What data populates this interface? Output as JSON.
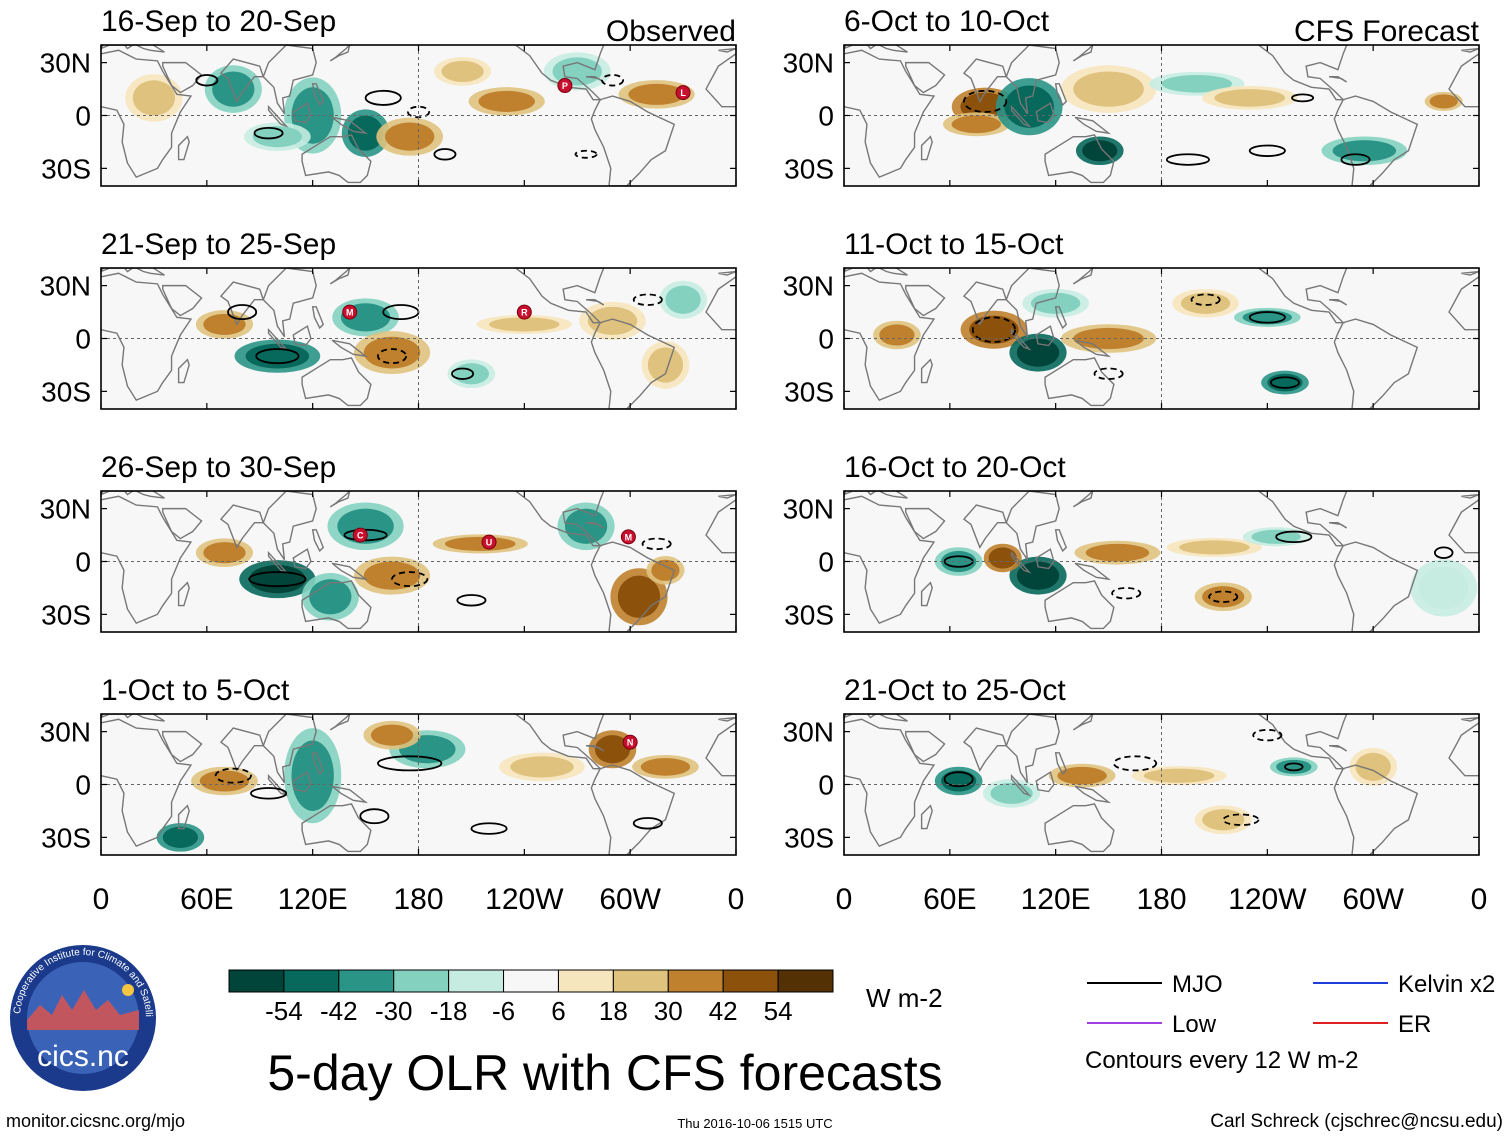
{
  "title": "5-day OLR with CFS forecasts",
  "url": "monitor.cicsnc.org/mjo",
  "timestamp": "Thu 2016-10-06 1515 UTC",
  "author": "Carl Schreck (cjschrec@ncsu.edu)",
  "logo": {
    "text": "cics.nc",
    "ring_text": "Cooperative Institute for Climate and Satellites"
  },
  "chart_data": {
    "type": "heatmap",
    "variable": "Outgoing Longwave Radiation anomaly",
    "units": "W m-2",
    "x_ticks": [
      "0",
      "60E",
      "120E",
      "180",
      "120W",
      "60W",
      "0"
    ],
    "y_ticks": [
      "30N",
      "0",
      "30S"
    ],
    "xlim_deg": [
      0,
      360
    ],
    "ylim_deg": [
      -40,
      40
    ],
    "colorbar": {
      "labels": [
        "-54",
        "-42",
        "-30",
        "-18",
        "-6",
        "6",
        "18",
        "30",
        "42",
        "54"
      ],
      "colors": [
        "#01443a",
        "#07685c",
        "#2a9486",
        "#84d1c0",
        "#c6ece2",
        "#f7f7f7",
        "#f6e6bd",
        "#dfc27d",
        "#bf812d",
        "#8c510a",
        "#543005"
      ]
    },
    "legend": {
      "items": [
        {
          "label": "MJO",
          "color": "#000000"
        },
        {
          "label": "Kelvin x2",
          "color": "#1e3cdc"
        },
        {
          "label": "Low",
          "color": "#a040e0"
        },
        {
          "label": "ER",
          "color": "#e02020"
        }
      ],
      "note": "Contours every 12 W m-2"
    },
    "panels": [
      {
        "period": "16-Sep to 20-Sep",
        "kind": "Observed",
        "column": "left",
        "tag": "Observed",
        "markers": [
          {
            "label": "P",
            "lon": 263,
            "lat": 17
          },
          {
            "label": "L",
            "lon": 330,
            "lat": 13
          }
        ]
      },
      {
        "period": "21-Sep to 25-Sep",
        "kind": "Observed",
        "column": "left",
        "tag": "",
        "markers": [
          {
            "label": "M",
            "lon": 141,
            "lat": 15
          },
          {
            "label": "R",
            "lon": 240,
            "lat": 15
          }
        ]
      },
      {
        "period": "26-Sep to 30-Sep",
        "kind": "Observed",
        "column": "left",
        "tag": "",
        "markers": [
          {
            "label": "C",
            "lon": 147,
            "lat": 15
          },
          {
            "label": "U",
            "lon": 220,
            "lat": 11
          },
          {
            "label": "M",
            "lon": 299,
            "lat": 14
          }
        ]
      },
      {
        "period": "1-Oct to 5-Oct",
        "kind": "Observed",
        "column": "left",
        "tag": "",
        "markers": [
          {
            "label": "N",
            "lon": 300,
            "lat": 24
          }
        ]
      },
      {
        "period": "6-Oct to 10-Oct",
        "kind": "CFS Forecast",
        "column": "right",
        "tag": "CFS Forecast",
        "markers": []
      },
      {
        "period": "11-Oct to 15-Oct",
        "kind": "CFS Forecast",
        "column": "right",
        "tag": "",
        "markers": []
      },
      {
        "period": "16-Oct to 20-Oct",
        "kind": "CFS Forecast",
        "column": "right",
        "tag": "",
        "markers": []
      },
      {
        "period": "21-Oct to 25-Oct",
        "kind": "CFS Forecast",
        "column": "right",
        "tag": "",
        "markers": []
      }
    ],
    "anomaly_features": [
      {
        "panel": 0,
        "lon": 120,
        "lat": 0,
        "w": 12,
        "h": 16,
        "v": -30
      },
      {
        "panel": 0,
        "lon": 150,
        "lat": -10,
        "w": 10,
        "h": 10,
        "v": -42
      },
      {
        "panel": 0,
        "lon": 75,
        "lat": 15,
        "w": 12,
        "h": 10,
        "v": -30
      },
      {
        "panel": 0,
        "lon": 100,
        "lat": -12,
        "w": 14,
        "h": 6,
        "v": -18
      },
      {
        "panel": 0,
        "lon": 175,
        "lat": -12,
        "w": 14,
        "h": 8,
        "v": 30
      },
      {
        "panel": 0,
        "lon": 230,
        "lat": 8,
        "w": 16,
        "h": 6,
        "v": 30
      },
      {
        "panel": 0,
        "lon": 315,
        "lat": 12,
        "w": 16,
        "h": 6,
        "v": 30
      },
      {
        "panel": 0,
        "lon": 270,
        "lat": 25,
        "w": 14,
        "h": 8,
        "v": -18
      },
      {
        "panel": 0,
        "lon": 30,
        "lat": 10,
        "w": 12,
        "h": 10,
        "v": 18
      },
      {
        "panel": 0,
        "lon": 205,
        "lat": 25,
        "w": 12,
        "h": 6,
        "v": 18
      },
      {
        "panel": 1,
        "lon": 100,
        "lat": -10,
        "w": 18,
        "h": 7,
        "v": -42
      },
      {
        "panel": 1,
        "lon": 150,
        "lat": 12,
        "w": 14,
        "h": 8,
        "v": -30
      },
      {
        "panel": 1,
        "lon": 70,
        "lat": 8,
        "w": 12,
        "h": 6,
        "v": 30
      },
      {
        "panel": 1,
        "lon": 165,
        "lat": -8,
        "w": 16,
        "h": 9,
        "v": 30
      },
      {
        "panel": 1,
        "lon": 240,
        "lat": 8,
        "w": 20,
        "h": 4,
        "v": 18
      },
      {
        "panel": 1,
        "lon": 290,
        "lat": 10,
        "w": 14,
        "h": 8,
        "v": 18
      },
      {
        "panel": 1,
        "lon": 320,
        "lat": -15,
        "w": 10,
        "h": 10,
        "v": 18
      },
      {
        "panel": 1,
        "lon": 210,
        "lat": -20,
        "w": 10,
        "h": 6,
        "v": -18
      },
      {
        "panel": 1,
        "lon": 330,
        "lat": 22,
        "w": 10,
        "h": 8,
        "v": -18
      },
      {
        "panel": 2,
        "lon": 100,
        "lat": -10,
        "w": 16,
        "h": 8,
        "v": -54
      },
      {
        "panel": 2,
        "lon": 130,
        "lat": -20,
        "w": 12,
        "h": 10,
        "v": -30
      },
      {
        "panel": 2,
        "lon": 150,
        "lat": 20,
        "w": 16,
        "h": 10,
        "v": -30
      },
      {
        "panel": 2,
        "lon": 165,
        "lat": -8,
        "w": 16,
        "h": 8,
        "v": 30
      },
      {
        "panel": 2,
        "lon": 70,
        "lat": 5,
        "w": 12,
        "h": 6,
        "v": 30
      },
      {
        "panel": 2,
        "lon": 215,
        "lat": 10,
        "w": 20,
        "h": 4,
        "v": 30
      },
      {
        "panel": 2,
        "lon": 305,
        "lat": -20,
        "w": 12,
        "h": 12,
        "v": 42
      },
      {
        "panel": 2,
        "lon": 275,
        "lat": 20,
        "w": 12,
        "h": 10,
        "v": -30
      },
      {
        "panel": 2,
        "lon": 320,
        "lat": -5,
        "w": 8,
        "h": 6,
        "v": 30
      },
      {
        "panel": 3,
        "lon": 120,
        "lat": 5,
        "w": 12,
        "h": 20,
        "v": -30
      },
      {
        "panel": 3,
        "lon": 70,
        "lat": 2,
        "w": 14,
        "h": 6,
        "v": 30
      },
      {
        "panel": 3,
        "lon": 185,
        "lat": 20,
        "w": 16,
        "h": 8,
        "v": -30
      },
      {
        "panel": 3,
        "lon": 250,
        "lat": 10,
        "w": 18,
        "h": 6,
        "v": 18
      },
      {
        "panel": 3,
        "lon": 290,
        "lat": 20,
        "w": 10,
        "h": 8,
        "v": 42
      },
      {
        "panel": 3,
        "lon": 320,
        "lat": 10,
        "w": 14,
        "h": 5,
        "v": 30
      },
      {
        "panel": 3,
        "lon": 45,
        "lat": -30,
        "w": 10,
        "h": 6,
        "v": -42
      },
      {
        "panel": 3,
        "lon": 165,
        "lat": 28,
        "w": 12,
        "h": 6,
        "v": 30
      },
      {
        "panel": 4,
        "lon": 80,
        "lat": 5,
        "w": 14,
        "h": 8,
        "v": 42
      },
      {
        "panel": 4,
        "lon": 75,
        "lat": -5,
        "w": 14,
        "h": 5,
        "v": 30
      },
      {
        "panel": 4,
        "lon": 105,
        "lat": 5,
        "w": 14,
        "h": 12,
        "v": -42
      },
      {
        "panel": 4,
        "lon": 145,
        "lat": -20,
        "w": 10,
        "h": 6,
        "v": -54
      },
      {
        "panel": 4,
        "lon": 150,
        "lat": 15,
        "w": 20,
        "h": 10,
        "v": 18
      },
      {
        "panel": 4,
        "lon": 200,
        "lat": 18,
        "w": 20,
        "h": 5,
        "v": -18
      },
      {
        "panel": 4,
        "lon": 230,
        "lat": 10,
        "w": 20,
        "h": 5,
        "v": 18
      },
      {
        "panel": 4,
        "lon": 295,
        "lat": -20,
        "w": 18,
        "h": 6,
        "v": -30
      },
      {
        "panel": 4,
        "lon": 340,
        "lat": 8,
        "w": 8,
        "h": 4,
        "v": 30
      },
      {
        "panel": 5,
        "lon": 85,
        "lat": 5,
        "w": 14,
        "h": 8,
        "v": 42
      },
      {
        "panel": 5,
        "lon": 30,
        "lat": 2,
        "w": 10,
        "h": 6,
        "v": 30
      },
      {
        "panel": 5,
        "lon": 110,
        "lat": -8,
        "w": 12,
        "h": 8,
        "v": -54
      },
      {
        "panel": 5,
        "lon": 150,
        "lat": 0,
        "w": 20,
        "h": 6,
        "v": 30
      },
      {
        "panel": 5,
        "lon": 240,
        "lat": 12,
        "w": 14,
        "h": 4,
        "v": -30
      },
      {
        "panel": 5,
        "lon": 250,
        "lat": -25,
        "w": 10,
        "h": 5,
        "v": -42
      },
      {
        "panel": 5,
        "lon": 205,
        "lat": 20,
        "w": 14,
        "h": 6,
        "v": 18
      },
      {
        "panel": 5,
        "lon": 120,
        "lat": 20,
        "w": 14,
        "h": 6,
        "v": -18
      },
      {
        "panel": 6,
        "lon": 110,
        "lat": -8,
        "w": 12,
        "h": 8,
        "v": -54
      },
      {
        "panel": 6,
        "lon": 65,
        "lat": 0,
        "w": 10,
        "h": 6,
        "v": -30
      },
      {
        "panel": 6,
        "lon": 90,
        "lat": 2,
        "w": 8,
        "h": 6,
        "v": 42
      },
      {
        "panel": 6,
        "lon": 155,
        "lat": 5,
        "w": 18,
        "h": 5,
        "v": 30
      },
      {
        "panel": 6,
        "lon": 210,
        "lat": 8,
        "w": 20,
        "h": 4,
        "v": 18
      },
      {
        "panel": 6,
        "lon": 215,
        "lat": -20,
        "w": 12,
        "h": 6,
        "v": 30
      },
      {
        "panel": 6,
        "lon": 245,
        "lat": 14,
        "w": 14,
        "h": 4,
        "v": -18
      },
      {
        "panel": 6,
        "lon": 340,
        "lat": -15,
        "w": 14,
        "h": 12,
        "v": -6
      },
      {
        "panel": 7,
        "lon": 65,
        "lat": 2,
        "w": 10,
        "h": 6,
        "v": -42
      },
      {
        "panel": 7,
        "lon": 95,
        "lat": -5,
        "w": 12,
        "h": 6,
        "v": -18
      },
      {
        "panel": 7,
        "lon": 135,
        "lat": 5,
        "w": 14,
        "h": 5,
        "v": 30
      },
      {
        "panel": 7,
        "lon": 190,
        "lat": 5,
        "w": 20,
        "h": 4,
        "v": 18
      },
      {
        "panel": 7,
        "lon": 255,
        "lat": 10,
        "w": 10,
        "h": 4,
        "v": -30
      },
      {
        "panel": 7,
        "lon": 215,
        "lat": -20,
        "w": 12,
        "h": 6,
        "v": 18
      },
      {
        "panel": 7,
        "lon": 300,
        "lat": 10,
        "w": 10,
        "h": 8,
        "v": 18
      }
    ],
    "mjo_contours": [
      {
        "panel": 0,
        "lon": 95,
        "lat": -10,
        "rx": 8,
        "ry": 3,
        "dash": false
      },
      {
        "panel": 0,
        "lon": 160,
        "lat": 10,
        "rx": 10,
        "ry": 4,
        "dash": false
      },
      {
        "panel": 0,
        "lon": 195,
        "lat": -22,
        "rx": 6,
        "ry": 3,
        "dash": false
      },
      {
        "panel": 0,
        "lon": 60,
        "lat": 20,
        "rx": 6,
        "ry": 3,
        "dash": false
      },
      {
        "panel": 0,
        "lon": 180,
        "lat": 2,
        "rx": 6,
        "ry": 3,
        "dash": true
      },
      {
        "panel": 0,
        "lon": 290,
        "lat": 20,
        "rx": 6,
        "ry": 3,
        "dash": true
      },
      {
        "panel": 0,
        "lon": 275,
        "lat": -22,
        "rx": 6,
        "ry": 2,
        "dash": true
      },
      {
        "panel": 1,
        "lon": 100,
        "lat": -10,
        "rx": 12,
        "ry": 4,
        "dash": false
      },
      {
        "panel": 1,
        "lon": 80,
        "lat": 15,
        "rx": 8,
        "ry": 4,
        "dash": false
      },
      {
        "panel": 1,
        "lon": 170,
        "lat": 15,
        "rx": 10,
        "ry": 4,
        "dash": false
      },
      {
        "panel": 1,
        "lon": 205,
        "lat": -20,
        "rx": 6,
        "ry": 3,
        "dash": false
      },
      {
        "panel": 1,
        "lon": 165,
        "lat": -10,
        "rx": 8,
        "ry": 4,
        "dash": true
      },
      {
        "panel": 1,
        "lon": 310,
        "lat": 22,
        "rx": 8,
        "ry": 3,
        "dash": true
      },
      {
        "panel": 2,
        "lon": 100,
        "lat": -10,
        "rx": 16,
        "ry": 4,
        "dash": false
      },
      {
        "panel": 2,
        "lon": 150,
        "lat": 15,
        "rx": 12,
        "ry": 3,
        "dash": false
      },
      {
        "panel": 2,
        "lon": 210,
        "lat": -22,
        "rx": 8,
        "ry": 3,
        "dash": false
      },
      {
        "panel": 2,
        "lon": 175,
        "lat": -10,
        "rx": 10,
        "ry": 4,
        "dash": true
      },
      {
        "panel": 2,
        "lon": 315,
        "lat": 10,
        "rx": 8,
        "ry": 3,
        "dash": true
      },
      {
        "panel": 3,
        "lon": 95,
        "lat": -5,
        "rx": 10,
        "ry": 3,
        "dash": false
      },
      {
        "panel": 3,
        "lon": 175,
        "lat": 12,
        "rx": 18,
        "ry": 4,
        "dash": false
      },
      {
        "panel": 3,
        "lon": 155,
        "lat": -18,
        "rx": 8,
        "ry": 4,
        "dash": false
      },
      {
        "panel": 3,
        "lon": 220,
        "lat": -25,
        "rx": 10,
        "ry": 3,
        "dash": false
      },
      {
        "panel": 3,
        "lon": 310,
        "lat": -22,
        "rx": 8,
        "ry": 3,
        "dash": false
      },
      {
        "panel": 3,
        "lon": 75,
        "lat": 5,
        "rx": 10,
        "ry": 4,
        "dash": true
      },
      {
        "panel": 4,
        "lon": 80,
        "lat": 8,
        "rx": 12,
        "ry": 6,
        "dash": true
      },
      {
        "panel": 4,
        "lon": 195,
        "lat": -25,
        "rx": 12,
        "ry": 3,
        "dash": false
      },
      {
        "panel": 4,
        "lon": 260,
        "lat": 10,
        "rx": 6,
        "ry": 2,
        "dash": false
      },
      {
        "panel": 4,
        "lon": 290,
        "lat": -25,
        "rx": 8,
        "ry": 3,
        "dash": false
      },
      {
        "panel": 4,
        "lon": 240,
        "lat": -20,
        "rx": 10,
        "ry": 3,
        "dash": false
      },
      {
        "panel": 5,
        "lon": 85,
        "lat": 5,
        "rx": 12,
        "ry": 7,
        "dash": true
      },
      {
        "panel": 5,
        "lon": 240,
        "lat": 12,
        "rx": 10,
        "ry": 3,
        "dash": false
      },
      {
        "panel": 5,
        "lon": 250,
        "lat": -25,
        "rx": 8,
        "ry": 3,
        "dash": false
      },
      {
        "panel": 5,
        "lon": 150,
        "lat": -20,
        "rx": 8,
        "ry": 3,
        "dash": true
      },
      {
        "panel": 5,
        "lon": 205,
        "lat": 22,
        "rx": 8,
        "ry": 3,
        "dash": true
      },
      {
        "panel": 6,
        "lon": 65,
        "lat": 0,
        "rx": 8,
        "ry": 3,
        "dash": false
      },
      {
        "panel": 6,
        "lon": 255,
        "lat": 14,
        "rx": 10,
        "ry": 3,
        "dash": false
      },
      {
        "panel": 6,
        "lon": 340,
        "lat": 5,
        "rx": 5,
        "ry": 3,
        "dash": false
      },
      {
        "panel": 6,
        "lon": 215,
        "lat": -20,
        "rx": 8,
        "ry": 3,
        "dash": true
      },
      {
        "panel": 6,
        "lon": 160,
        "lat": -18,
        "rx": 8,
        "ry": 3,
        "dash": true
      },
      {
        "panel": 7,
        "lon": 65,
        "lat": 3,
        "rx": 8,
        "ry": 4,
        "dash": false
      },
      {
        "panel": 7,
        "lon": 255,
        "lat": 10,
        "rx": 5,
        "ry": 2,
        "dash": false
      },
      {
        "panel": 7,
        "lon": 225,
        "lat": -20,
        "rx": 10,
        "ry": 3,
        "dash": true
      },
      {
        "panel": 7,
        "lon": 165,
        "lat": 12,
        "rx": 12,
        "ry": 4,
        "dash": true
      },
      {
        "panel": 7,
        "lon": 240,
        "lat": 28,
        "rx": 8,
        "ry": 3,
        "dash": true
      }
    ]
  }
}
